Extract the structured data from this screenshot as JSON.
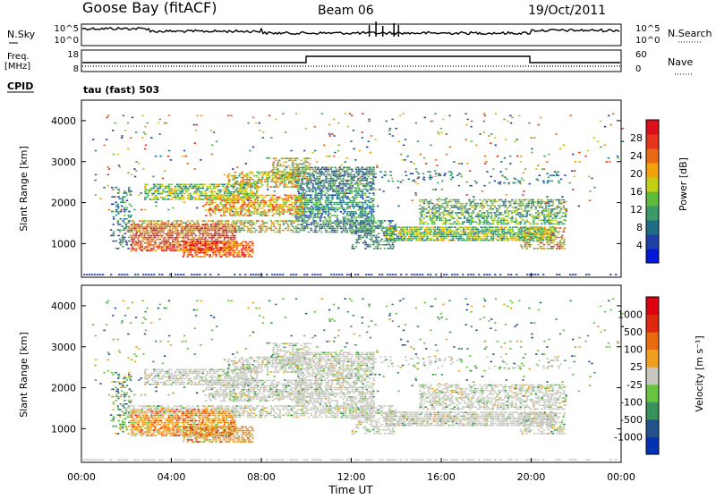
{
  "header": {
    "station": "Goose Bay (fitACF)",
    "beam": "Beam 06",
    "date": "19/Oct/2011"
  },
  "top_panels": {
    "nsky": {
      "label": "N.Sky",
      "right_label": "N.Search",
      "yticks_left": [
        "10^5",
        "10^0"
      ],
      "yticks_right": [
        "10^5",
        "10^0"
      ]
    },
    "freq": {
      "label_line1": "Freq.",
      "label_line2": "[MHz]",
      "right_label": "Nave",
      "yticks_left": [
        "18",
        "8"
      ],
      "yticks_right": [
        "60",
        "0"
      ]
    },
    "cpid": {
      "label": "CPID",
      "value": "tau (fast) 503"
    }
  },
  "x_axis": {
    "ticks": [
      "00:00",
      "04:00",
      "08:00",
      "12:00",
      "16:00",
      "20:00",
      "00:00"
    ],
    "label": "Time UT"
  },
  "chart_data": [
    {
      "type": "heatmap",
      "title": "",
      "ylabel": "Slant Range [km]",
      "xlabel": "Time UT",
      "ylim": [
        180,
        4500
      ],
      "yticks": [
        "1000",
        "2000",
        "3000",
        "4000"
      ],
      "colorbar": {
        "label": "Power [dB]",
        "ticks": [
          "28",
          "24",
          "20",
          "16",
          "12",
          "8",
          "4"
        ],
        "colors": [
          "#0018d8",
          "#2040a8",
          "#206c84",
          "#3a9a6a",
          "#5fbb3c",
          "#c2cf16",
          "#f2a20c",
          "#ea6a16",
          "#e7321d",
          "#dd0f1c"
        ]
      }
    },
    {
      "type": "heatmap",
      "title": "",
      "ylabel": "Slant Range [km]",
      "xlabel": "Time UT",
      "ylim": [
        180,
        4500
      ],
      "yticks": [
        "1000",
        "2000",
        "3000",
        "4000"
      ],
      "colorbar": {
        "label": "Velocity [m s⁻¹]",
        "ticks": [
          "1000",
          "500",
          "100",
          "25",
          "-25",
          "-100",
          "-500",
          "-1000"
        ],
        "colors": [
          "#0032b4",
          "#24508c",
          "#38905a",
          "#68c440",
          "#c8c8c0",
          "#f0a020",
          "#e86c10",
          "#e02810",
          "#dd0010"
        ]
      }
    }
  ]
}
